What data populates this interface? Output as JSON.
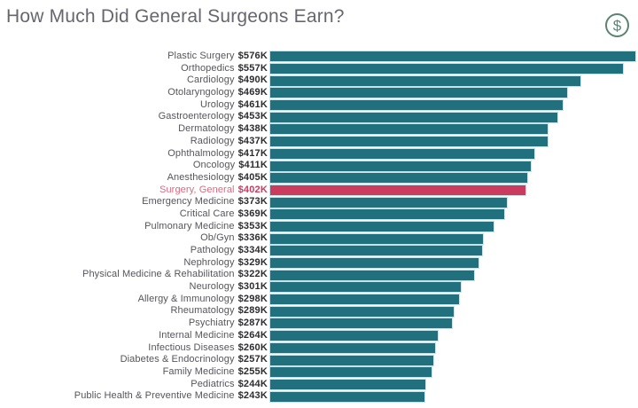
{
  "title": "How Much Did General Surgeons Earn?",
  "icons": {
    "dollar_icon": "dollar-sign-in-circle",
    "dollar_glyph": "$",
    "icon_color": "#5a8472"
  },
  "colors": {
    "bar_color": "#20707e",
    "highlight_color": "#ca3b5e",
    "highlight_label_color": "#d96a80",
    "title_color": "#66666e",
    "category_label_color": "#55555c",
    "value_label_color": "#2c2c31",
    "background": "#ffffff"
  },
  "chart_data": {
    "type": "bar",
    "orientation": "horizontal",
    "title": "How Much Did General Surgeons Earn?",
    "xlabel": "",
    "ylabel": "",
    "unit": "USD thousands per year",
    "axis_visible": false,
    "grid": false,
    "legend": false,
    "max_value": 576,
    "highlighted_category": "Surgery, General",
    "rows": [
      {
        "label": "Plastic Surgery",
        "value": 576,
        "display": "$576K",
        "highlight": false
      },
      {
        "label": "Orthopedics",
        "value": 557,
        "display": "$557K",
        "highlight": false
      },
      {
        "label": "Cardiology",
        "value": 490,
        "display": "$490K",
        "highlight": false
      },
      {
        "label": "Otolaryngology",
        "value": 469,
        "display": "$469K",
        "highlight": false
      },
      {
        "label": "Urology",
        "value": 461,
        "display": "$461K",
        "highlight": false
      },
      {
        "label": "Gastroenterology",
        "value": 453,
        "display": "$453K",
        "highlight": false
      },
      {
        "label": "Dermatology",
        "value": 438,
        "display": "$438K",
        "highlight": false
      },
      {
        "label": "Radiology",
        "value": 437,
        "display": "$437K",
        "highlight": false
      },
      {
        "label": "Ophthalmology",
        "value": 417,
        "display": "$417K",
        "highlight": false
      },
      {
        "label": "Oncology",
        "value": 411,
        "display": "$411K",
        "highlight": false
      },
      {
        "label": "Anesthesiology",
        "value": 405,
        "display": "$405K",
        "highlight": false
      },
      {
        "label": "Surgery, General",
        "value": 402,
        "display": "$402K",
        "highlight": true
      },
      {
        "label": "Emergency Medicine",
        "value": 373,
        "display": "$373K",
        "highlight": false
      },
      {
        "label": "Critical Care",
        "value": 369,
        "display": "$369K",
        "highlight": false
      },
      {
        "label": "Pulmonary Medicine",
        "value": 353,
        "display": "$353K",
        "highlight": false
      },
      {
        "label": "Ob/Gyn",
        "value": 336,
        "display": "$336K",
        "highlight": false
      },
      {
        "label": "Pathology",
        "value": 334,
        "display": "$334K",
        "highlight": false
      },
      {
        "label": "Nephrology",
        "value": 329,
        "display": "$329K",
        "highlight": false
      },
      {
        "label": "Physical Medicine & Rehabilitation",
        "value": 322,
        "display": "$322K",
        "highlight": false
      },
      {
        "label": "Neurology",
        "value": 301,
        "display": "$301K",
        "highlight": false
      },
      {
        "label": "Allergy & Immunology",
        "value": 298,
        "display": "$298K",
        "highlight": false
      },
      {
        "label": "Rheumatology",
        "value": 289,
        "display": "$289K",
        "highlight": false
      },
      {
        "label": "Psychiatry",
        "value": 287,
        "display": "$287K",
        "highlight": false
      },
      {
        "label": "Internal Medicine",
        "value": 264,
        "display": "$264K",
        "highlight": false
      },
      {
        "label": "Infectious Diseases",
        "value": 260,
        "display": "$260K",
        "highlight": false
      },
      {
        "label": "Diabetes & Endocrinology",
        "value": 257,
        "display": "$257K",
        "highlight": false
      },
      {
        "label": "Family Medicine",
        "value": 255,
        "display": "$255K",
        "highlight": false
      },
      {
        "label": "Pediatrics",
        "value": 244,
        "display": "$244K",
        "highlight": false
      },
      {
        "label": "Public Health & Preventive Medicine",
        "value": 243,
        "display": "$243K",
        "highlight": false
      }
    ]
  }
}
